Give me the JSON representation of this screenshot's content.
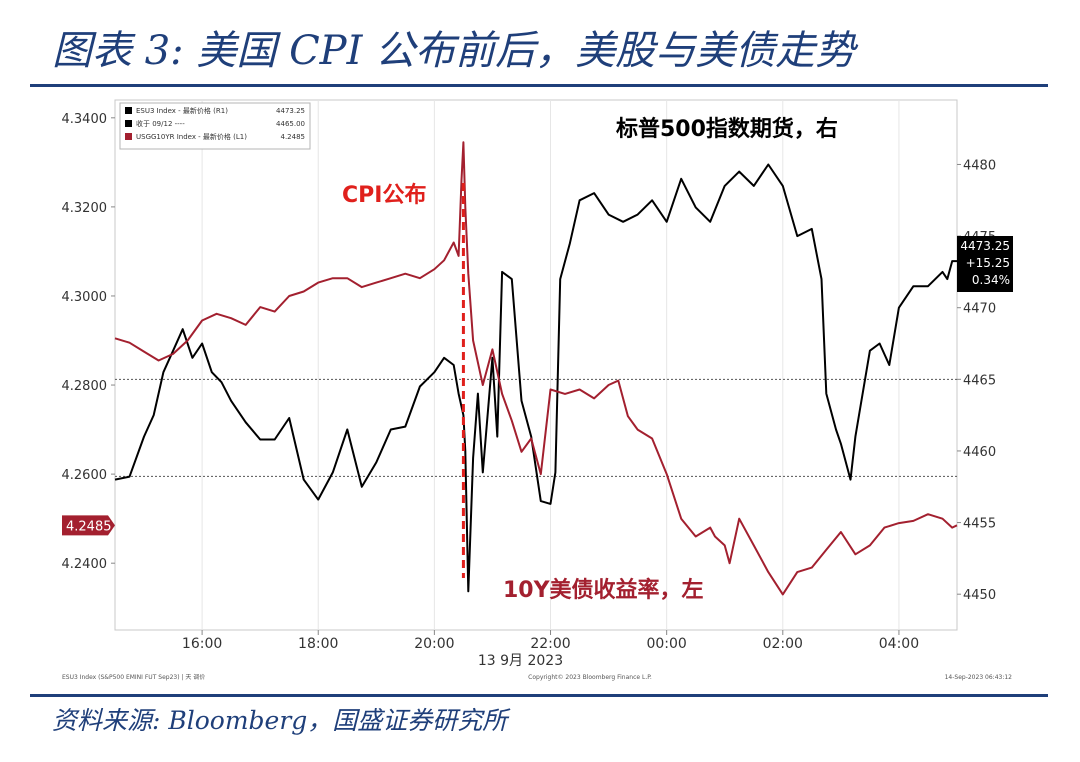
{
  "figure": {
    "title": "图表 3: 美国 CPI 公布前后，美股与美债走势",
    "source": "资料来源: Bloomberg，国盛证券研究所"
  },
  "colors": {
    "spx": "#000000",
    "ust": "#a3202f",
    "accent": "#e0201c",
    "frame": "#1f3f7a"
  },
  "chart_data": {
    "type": "line",
    "date_label": "13 9月 2023",
    "annotations": [
      {
        "text": "标普500指数期货，右",
        "color": "#000000"
      },
      {
        "text": "CPI公布",
        "color": "#e0201c"
      },
      {
        "text": "10Y美债收益率，左",
        "color": "#a3202f"
      }
    ],
    "x_axis": {
      "range": [
        "14:30",
        "05:00"
      ],
      "ticks": [
        "16:00",
        "18:00",
        "20:00",
        "22:00",
        "00:00",
        "02:00",
        "04:00"
      ]
    },
    "y_left": {
      "range": [
        4.225,
        4.344
      ],
      "ticks": [
        "4.3400",
        "4.3200",
        "4.3000",
        "4.2800",
        "4.2600",
        "4.2400"
      ],
      "last_value": "4.2485"
    },
    "y_right": {
      "range": [
        4447.5,
        4484.5
      ],
      "ticks": [
        "4480",
        "4475",
        "4470",
        "4465",
        "4460",
        "4455",
        "4450"
      ]
    },
    "reference_lines": {
      "left": 4.2595,
      "right": 4465.0
    },
    "event_time": "20:30",
    "last_price_box": [
      "4473.25",
      "+15.25",
      "0.34%"
    ],
    "legend": [
      {
        "text": "ESU3 Index - 最新价格 (R1)",
        "value": "4473.25",
        "color": "#000000"
      },
      {
        "text": "收于 09/12 ----",
        "value": "4465.00",
        "color": "#000000"
      },
      {
        "text": "USGG10YR Index - 最新价格 (L1)",
        "value": "4.2485",
        "color": "#a3202f"
      }
    ],
    "footer": {
      "left": "ESU3 Index (S&P500 EMINI FUT Sep23) | 天 调价",
      "center": "Copyright© 2023 Bloomberg Finance L.P.",
      "right": "14-Sep-2023 06:43:12"
    },
    "series": [
      {
        "name": "标普500指数期货",
        "axis": "right",
        "x": [
          "14:30",
          "14:45",
          "15:00",
          "15:10",
          "15:20",
          "15:30",
          "15:40",
          "15:50",
          "16:00",
          "16:10",
          "16:20",
          "16:30",
          "16:45",
          "17:00",
          "17:15",
          "17:30",
          "17:45",
          "18:00",
          "18:15",
          "18:30",
          "18:45",
          "19:00",
          "19:15",
          "19:30",
          "19:45",
          "20:00",
          "20:10",
          "20:20",
          "20:25",
          "20:30",
          "20:32",
          "20:35",
          "20:40",
          "20:45",
          "20:50",
          "21:00",
          "21:05",
          "21:10",
          "21:20",
          "21:30",
          "21:40",
          "21:50",
          "22:00",
          "22:05",
          "22:10",
          "22:20",
          "22:30",
          "22:45",
          "23:00",
          "23:15",
          "23:30",
          "23:45",
          "00:00",
          "00:15",
          "00:30",
          "00:45",
          "01:00",
          "01:15",
          "01:30",
          "01:45",
          "02:00",
          "02:15",
          "02:30",
          "02:40",
          "02:45",
          "02:55",
          "03:00",
          "03:10",
          "03:15",
          "03:20",
          "03:30",
          "03:40",
          "03:50",
          "04:00",
          "04:15",
          "04:30",
          "04:45",
          "04:50",
          "04:55",
          "05:00"
        ],
        "values": [
          4458.0,
          4458.2,
          4461.0,
          4462.5,
          4465.5,
          4467.0,
          4468.5,
          4466.5,
          4467.5,
          4465.5,
          4464.8,
          4463.5,
          4462.0,
          4460.8,
          4460.8,
          4462.3,
          4458.0,
          4456.6,
          4458.5,
          4461.5,
          4457.5,
          4459.2,
          4461.5,
          4461.7,
          4464.5,
          4465.5,
          4466.5,
          4466.0,
          4464.0,
          4462.5,
          4460.0,
          4450.2,
          4459.5,
          4464.0,
          4458.5,
          4466.5,
          4461.0,
          4472.5,
          4472.0,
          4463.5,
          4461.0,
          4456.5,
          4456.3,
          4458.5,
          4472.0,
          4474.5,
          4477.5,
          4478.0,
          4476.5,
          4476.0,
          4476.5,
          4477.5,
          4476.0,
          4479.0,
          4477.0,
          4476.0,
          4478.5,
          4479.5,
          4478.5,
          4480.0,
          4478.5,
          4475.0,
          4475.5,
          4472.0,
          4464.0,
          4461.5,
          4460.5,
          4458.0,
          4461.0,
          4463.0,
          4467.0,
          4467.5,
          4466.0,
          4470.0,
          4471.5,
          4471.5,
          4472.5,
          4472.0,
          4473.25,
          4473.25
        ]
      },
      {
        "name": "10Y美债收益率",
        "axis": "left",
        "x": [
          "14:30",
          "14:45",
          "15:00",
          "15:15",
          "15:30",
          "15:45",
          "16:00",
          "16:15",
          "16:30",
          "16:45",
          "17:00",
          "17:15",
          "17:30",
          "17:45",
          "18:00",
          "18:15",
          "18:30",
          "18:45",
          "19:00",
          "19:15",
          "19:30",
          "19:45",
          "20:00",
          "20:10",
          "20:20",
          "20:25",
          "20:28",
          "20:30",
          "20:32",
          "20:35",
          "20:40",
          "20:50",
          "21:00",
          "21:10",
          "21:20",
          "21:30",
          "21:40",
          "21:50",
          "22:00",
          "22:15",
          "22:30",
          "22:45",
          "23:00",
          "23:10",
          "23:20",
          "23:30",
          "23:45",
          "00:00",
          "00:15",
          "00:30",
          "00:45",
          "00:50",
          "01:00",
          "01:05",
          "01:15",
          "01:30",
          "01:45",
          "02:00",
          "02:15",
          "02:30",
          "02:45",
          "03:00",
          "03:15",
          "03:30",
          "03:45",
          "04:00",
          "04:15",
          "04:30",
          "04:45",
          "04:55",
          "05:00"
        ],
        "values": [
          4.2905,
          4.2895,
          4.2875,
          4.2855,
          4.287,
          4.29,
          4.2945,
          4.296,
          4.295,
          4.2935,
          4.2975,
          4.2965,
          4.3,
          4.301,
          4.303,
          4.304,
          4.304,
          4.302,
          4.303,
          4.304,
          4.305,
          4.304,
          4.306,
          4.308,
          4.312,
          4.309,
          4.326,
          4.3345,
          4.32,
          4.305,
          4.29,
          4.28,
          4.288,
          4.278,
          4.272,
          4.265,
          4.268,
          4.26,
          4.279,
          4.278,
          4.279,
          4.277,
          4.28,
          4.281,
          4.273,
          4.27,
          4.268,
          4.26,
          4.25,
          4.246,
          4.248,
          4.246,
          4.244,
          4.24,
          4.25,
          4.244,
          4.238,
          4.233,
          4.238,
          4.239,
          4.243,
          4.247,
          4.242,
          4.244,
          4.248,
          4.249,
          4.2495,
          4.251,
          4.25,
          4.248,
          4.2485
        ]
      }
    ]
  }
}
